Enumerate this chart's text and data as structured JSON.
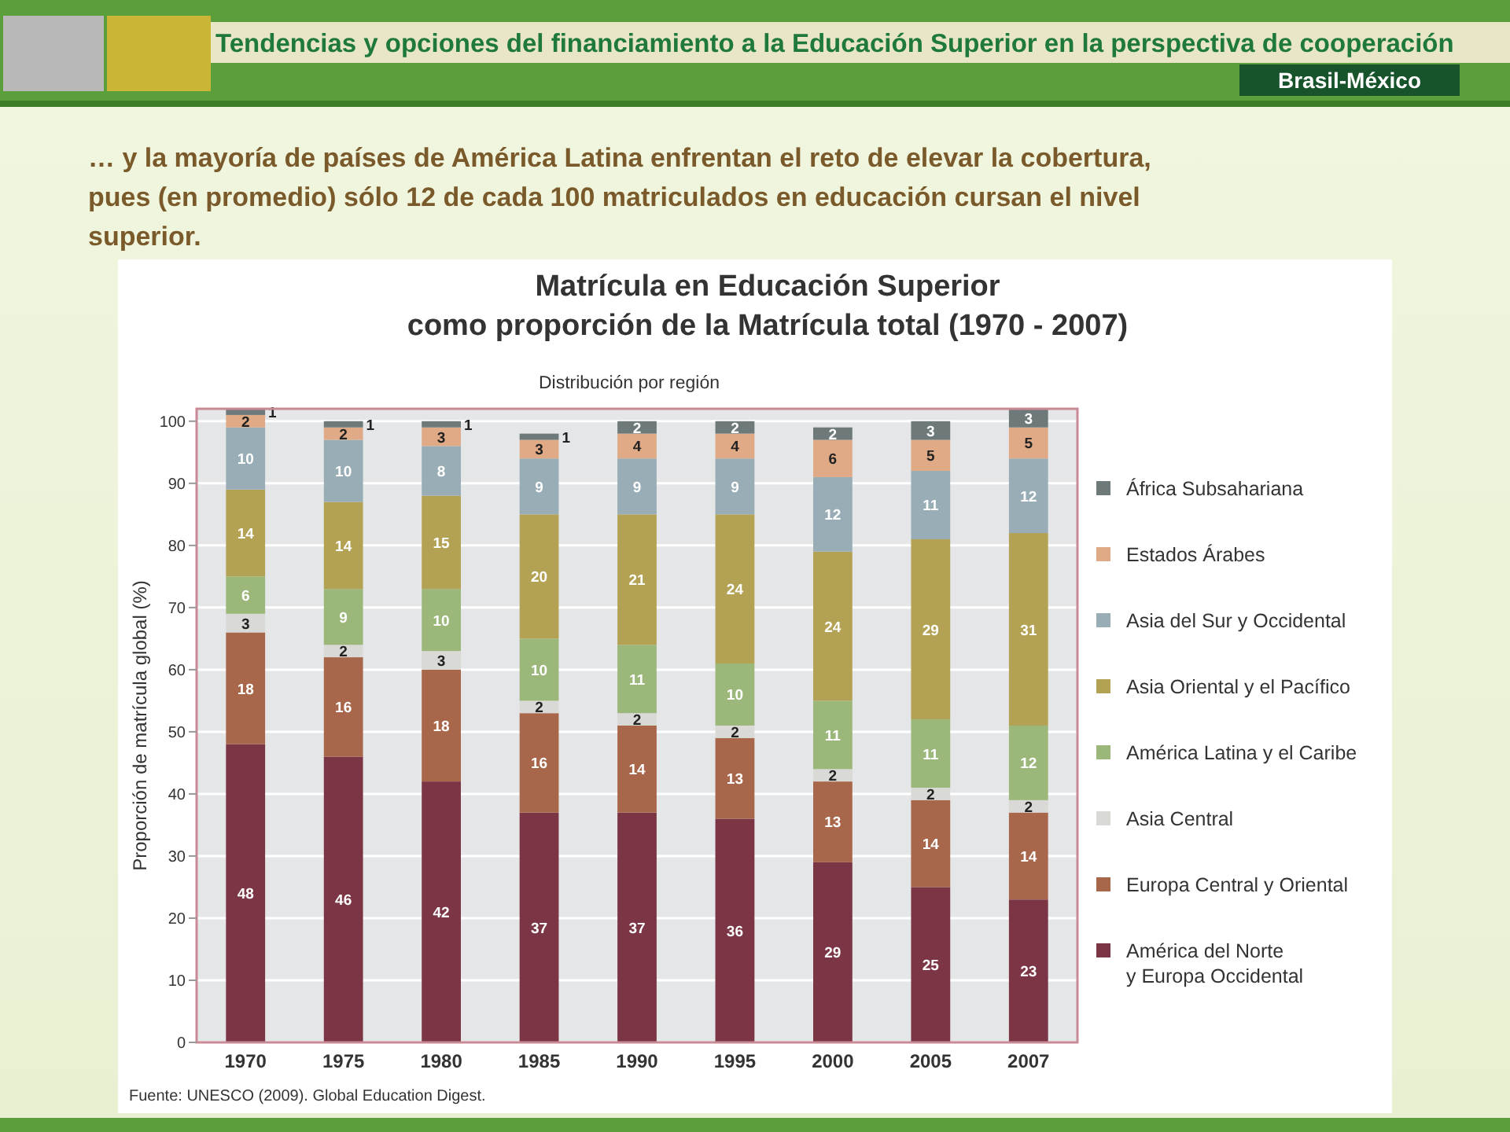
{
  "chart_data": {
    "type": "bar",
    "stacked": true,
    "title": "Matrícula en Educación Superior\ncomo proporción de la Matrícula total (1970 - 2007)",
    "subtitle": "Distribución por región",
    "ylabel": "Proporción de matrícula global (%)",
    "annotations": [
      "Tendencias y opciones del financiamiento a la Educación Superior en la perspectiva de cooperación",
      "Brasil-México",
      "… y la mayoría de países de América Latina enfrentan el reto de elevar la cobertura, pues (en promedio) sólo 12 de cada 100 matriculados en educación cursan el nivel superior.",
      "Fuente: UNESCO (2009). Global Education Digest."
    ],
    "categories": [
      "1970",
      "1975",
      "1980",
      "1985",
      "1990",
      "1995",
      "2000",
      "2005",
      "2007"
    ],
    "series": [
      {
        "name": "América del Norte\ny Europa Occidental",
        "color": "#7b3545",
        "values": [
          48,
          46,
          42,
          37,
          37,
          36,
          29,
          25,
          23
        ]
      },
      {
        "name": "Europa Central y Oriental",
        "color": "#a8664a",
        "values": [
          18,
          16,
          18,
          16,
          14,
          13,
          13,
          14,
          14
        ]
      },
      {
        "name": "Asia Central",
        "color": "#d9d9d6",
        "values": [
          3,
          2,
          3,
          2,
          2,
          2,
          2,
          2,
          2
        ]
      },
      {
        "name": "América Latina y el Caribe",
        "color": "#9cb77a",
        "values": [
          6,
          9,
          10,
          10,
          11,
          10,
          11,
          11,
          12
        ]
      },
      {
        "name": "Asia Oriental y el Pacífico",
        "color": "#b4a254",
        "values": [
          14,
          14,
          15,
          20,
          21,
          24,
          24,
          29,
          31
        ]
      },
      {
        "name": "Asia del Sur y Occidental",
        "color": "#98adb5",
        "values": [
          10,
          10,
          8,
          9,
          9,
          9,
          12,
          11,
          12
        ]
      },
      {
        "name": "Estados Árabes",
        "color": "#dfaa85",
        "values": [
          2,
          2,
          3,
          3,
          4,
          4,
          6,
          5,
          5
        ]
      },
      {
        "name": "África Subsahariana",
        "color": "#6e7a7a",
        "values": [
          1,
          1,
          1,
          1,
          2,
          2,
          2,
          3,
          3
        ]
      }
    ],
    "ylim": [
      0,
      102
    ],
    "yticks": [
      0,
      10,
      20,
      30,
      40,
      50,
      60,
      70,
      80,
      90,
      100
    ],
    "grid": "y",
    "legend": "right",
    "data_labels": true
  }
}
